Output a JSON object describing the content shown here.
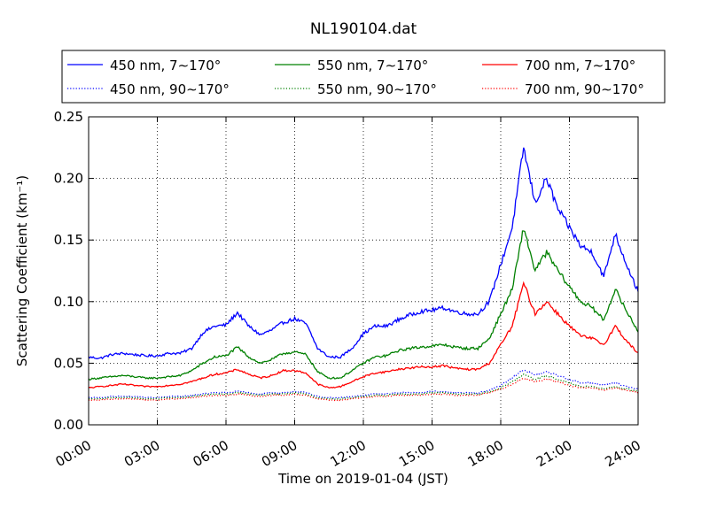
{
  "chart_data": {
    "type": "line",
    "title": "NL190104.dat",
    "xlabel": "Time on 2019-01-04 (JST)",
    "ylabel": "Scattering Coefficient (km⁻¹)",
    "xlim": [
      0,
      24
    ],
    "ylim": [
      0,
      0.25
    ],
    "xticks": [
      0,
      3,
      6,
      9,
      12,
      15,
      18,
      21,
      24
    ],
    "xtick_labels": [
      "00:00",
      "03:00",
      "06:00",
      "09:00",
      "12:00",
      "15:00",
      "18:00",
      "21:00",
      "24:00"
    ],
    "yticks": [
      0,
      0.05,
      0.1,
      0.15,
      0.2,
      0.25
    ],
    "ytick_labels": [
      "0.00",
      "0.05",
      "0.10",
      "0.15",
      "0.20",
      "0.25"
    ],
    "grid": true,
    "legend_position": "top, above plot, 3 columns",
    "x": [
      0,
      0.5,
      1,
      1.5,
      2,
      2.5,
      3,
      3.5,
      4,
      4.5,
      5,
      5.5,
      6,
      6.5,
      7,
      7.5,
      8,
      8.5,
      9,
      9.5,
      10,
      10.5,
      11,
      11.5,
      12,
      12.5,
      13,
      13.5,
      14,
      14.5,
      15,
      15.5,
      16,
      16.5,
      17,
      17.5,
      18,
      18.5,
      19,
      19.5,
      20,
      20.5,
      21,
      21.5,
      22,
      22.5,
      23,
      23.5,
      24
    ],
    "series": [
      {
        "name": "450 nm, 7∼170°",
        "color": "#0000ff",
        "style": "solid",
        "values": [
          0.055,
          0.054,
          0.057,
          0.058,
          0.057,
          0.056,
          0.056,
          0.058,
          0.058,
          0.062,
          0.075,
          0.08,
          0.081,
          0.091,
          0.08,
          0.073,
          0.077,
          0.083,
          0.086,
          0.082,
          0.062,
          0.055,
          0.055,
          0.062,
          0.074,
          0.08,
          0.08,
          0.085,
          0.089,
          0.092,
          0.093,
          0.095,
          0.092,
          0.09,
          0.09,
          0.1,
          0.13,
          0.16,
          0.225,
          0.18,
          0.2,
          0.175,
          0.16,
          0.145,
          0.14,
          0.12,
          0.155,
          0.13,
          0.108
        ]
      },
      {
        "name": "550 nm, 7∼170°",
        "color": "#008000",
        "style": "solid",
        "values": [
          0.037,
          0.038,
          0.039,
          0.04,
          0.039,
          0.038,
          0.038,
          0.039,
          0.04,
          0.044,
          0.05,
          0.055,
          0.056,
          0.063,
          0.055,
          0.05,
          0.053,
          0.058,
          0.059,
          0.057,
          0.043,
          0.038,
          0.038,
          0.044,
          0.05,
          0.055,
          0.056,
          0.06,
          0.062,
          0.063,
          0.064,
          0.065,
          0.063,
          0.062,
          0.062,
          0.07,
          0.09,
          0.11,
          0.16,
          0.125,
          0.14,
          0.125,
          0.112,
          0.1,
          0.095,
          0.085,
          0.11,
          0.092,
          0.076
        ]
      },
      {
        "name": "700 nm, 7∼170°",
        "color": "#ff0000",
        "style": "solid",
        "values": [
          0.03,
          0.031,
          0.032,
          0.033,
          0.032,
          0.031,
          0.031,
          0.032,
          0.033,
          0.035,
          0.038,
          0.041,
          0.042,
          0.045,
          0.041,
          0.038,
          0.04,
          0.044,
          0.044,
          0.042,
          0.033,
          0.03,
          0.031,
          0.035,
          0.039,
          0.042,
          0.043,
          0.045,
          0.046,
          0.047,
          0.047,
          0.048,
          0.046,
          0.045,
          0.045,
          0.05,
          0.065,
          0.08,
          0.115,
          0.09,
          0.1,
          0.09,
          0.08,
          0.072,
          0.07,
          0.065,
          0.08,
          0.068,
          0.058
        ]
      },
      {
        "name": "450 nm, 90∼170°",
        "color": "#0000ff",
        "style": "dotted",
        "values": [
          0.022,
          0.022,
          0.023,
          0.023,
          0.023,
          0.022,
          0.022,
          0.023,
          0.023,
          0.024,
          0.025,
          0.026,
          0.026,
          0.027,
          0.026,
          0.025,
          0.026,
          0.026,
          0.027,
          0.026,
          0.023,
          0.022,
          0.022,
          0.023,
          0.024,
          0.025,
          0.025,
          0.026,
          0.026,
          0.026,
          0.027,
          0.027,
          0.026,
          0.026,
          0.026,
          0.028,
          0.032,
          0.038,
          0.045,
          0.04,
          0.043,
          0.04,
          0.037,
          0.034,
          0.034,
          0.032,
          0.034,
          0.031,
          0.029
        ]
      },
      {
        "name": "550 nm, 90∼170°",
        "color": "#008000",
        "style": "dotted",
        "values": [
          0.021,
          0.021,
          0.022,
          0.022,
          0.022,
          0.021,
          0.021,
          0.022,
          0.022,
          0.023,
          0.024,
          0.025,
          0.025,
          0.026,
          0.025,
          0.024,
          0.025,
          0.025,
          0.026,
          0.025,
          0.022,
          0.021,
          0.021,
          0.022,
          0.023,
          0.024,
          0.024,
          0.025,
          0.025,
          0.025,
          0.026,
          0.026,
          0.025,
          0.025,
          0.025,
          0.027,
          0.03,
          0.035,
          0.041,
          0.037,
          0.04,
          0.037,
          0.034,
          0.031,
          0.031,
          0.029,
          0.031,
          0.029,
          0.027
        ]
      },
      {
        "name": "700 nm, 90∼170°",
        "color": "#ff0000",
        "style": "dotted",
        "values": [
          0.02,
          0.02,
          0.021,
          0.021,
          0.021,
          0.02,
          0.02,
          0.021,
          0.021,
          0.022,
          0.023,
          0.024,
          0.024,
          0.025,
          0.024,
          0.023,
          0.024,
          0.024,
          0.025,
          0.024,
          0.021,
          0.02,
          0.02,
          0.021,
          0.022,
          0.023,
          0.023,
          0.024,
          0.024,
          0.024,
          0.025,
          0.025,
          0.024,
          0.024,
          0.024,
          0.026,
          0.029,
          0.033,
          0.038,
          0.035,
          0.037,
          0.035,
          0.032,
          0.03,
          0.03,
          0.028,
          0.03,
          0.028,
          0.026
        ]
      }
    ]
  }
}
